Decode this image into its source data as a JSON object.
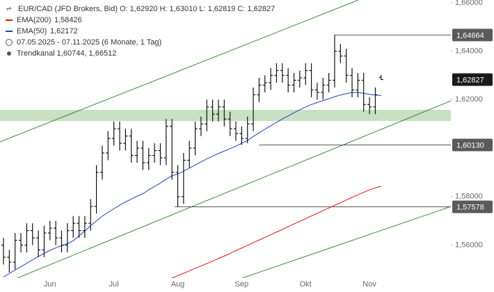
{
  "chart_data": {
    "type": "ohlc",
    "title": "EUR/CAD (JFD Brokers, Bid)",
    "ohlc_text": "O: 1,62920  H: 1,63010  L: 1,62819  C: 1,62827",
    "range_text": "07.05.2025 - 07.11.2025  (6 Monate, 1 Tag)",
    "channel_text": "Trendkanal  1,60744, 1,66512",
    "bar_color": "#111111",
    "categories": [
      null,
      null,
      null,
      null,
      null,
      null,
      null,
      null,
      "Jun",
      null,
      null,
      null,
      null,
      null,
      null,
      null,
      null,
      null,
      null,
      "Jul",
      null,
      null,
      null,
      null,
      null,
      null,
      null,
      null,
      null,
      null,
      "Aug",
      null,
      null,
      null,
      null,
      null,
      null,
      null,
      null,
      null,
      null,
      "Sep",
      null,
      null,
      null,
      null,
      null,
      null,
      null,
      null,
      null,
      null,
      "Okt",
      null,
      null,
      null,
      null,
      null,
      null,
      null,
      null,
      null,
      null,
      "Nov",
      null,
      null
    ],
    "open": [
      1.56,
      1.555,
      1.553,
      1.562,
      1.56,
      1.566,
      1.563,
      1.558,
      1.565,
      1.567,
      1.563,
      1.56,
      1.566,
      1.569,
      1.566,
      1.569,
      1.576,
      1.59,
      1.598,
      1.604,
      1.608,
      1.602,
      1.605,
      1.597,
      1.6,
      1.594,
      1.597,
      1.599,
      1.596,
      1.609,
      1.59,
      1.58,
      1.595,
      1.6,
      1.608,
      1.61,
      1.617,
      1.614,
      1.617,
      1.612,
      1.608,
      1.606,
      1.604,
      1.61,
      1.622,
      1.626,
      1.627,
      1.63,
      1.632,
      1.63,
      1.626,
      1.628,
      1.629,
      1.632,
      1.624,
      1.623,
      1.626,
      1.628,
      1.64,
      1.638,
      1.63,
      1.624,
      1.628,
      1.618,
      1.617,
      1.6292
    ],
    "high": [
      1.563,
      1.558,
      1.565,
      1.565,
      1.569,
      1.569,
      1.566,
      1.568,
      1.57,
      1.57,
      1.566,
      1.569,
      1.572,
      1.572,
      1.572,
      1.579,
      1.593,
      1.601,
      1.607,
      1.611,
      1.611,
      1.608,
      1.608,
      1.603,
      1.603,
      1.6,
      1.602,
      1.602,
      1.612,
      1.612,
      1.593,
      1.598,
      1.603,
      1.611,
      1.613,
      1.62,
      1.62,
      1.62,
      1.62,
      1.615,
      1.611,
      1.609,
      1.613,
      1.625,
      1.629,
      1.63,
      1.633,
      1.635,
      1.635,
      1.633,
      1.631,
      1.632,
      1.635,
      1.635,
      1.627,
      1.629,
      1.631,
      1.64664,
      1.643,
      1.641,
      1.633,
      1.631,
      1.631,
      1.621,
      1.625,
      1.6301
    ],
    "low": [
      1.552,
      1.5487,
      1.55,
      1.557,
      1.557,
      1.56,
      1.555,
      1.555,
      1.562,
      1.56,
      1.557,
      1.557,
      1.563,
      1.563,
      1.563,
      1.566,
      1.573,
      1.587,
      1.595,
      1.601,
      1.599,
      1.599,
      1.594,
      1.594,
      1.591,
      1.591,
      1.594,
      1.593,
      1.593,
      1.587,
      1.57578,
      1.577,
      1.592,
      1.597,
      1.605,
      1.607,
      1.611,
      1.611,
      1.609,
      1.605,
      1.603,
      1.6013,
      1.602,
      1.607,
      1.619,
      1.623,
      1.624,
      1.627,
      1.627,
      1.623,
      1.623,
      1.625,
      1.626,
      1.621,
      1.62,
      1.62,
      1.623,
      1.625,
      1.635,
      1.627,
      1.621,
      1.621,
      1.615,
      1.614,
      1.614,
      1.62819
    ],
    "close": [
      1.555,
      1.553,
      1.562,
      1.56,
      1.566,
      1.563,
      1.558,
      1.565,
      1.567,
      1.563,
      1.56,
      1.566,
      1.569,
      1.566,
      1.569,
      1.576,
      1.59,
      1.598,
      1.604,
      1.608,
      1.602,
      1.605,
      1.597,
      1.6,
      1.594,
      1.597,
      1.599,
      1.596,
      1.609,
      1.59,
      1.58,
      1.595,
      1.6,
      1.608,
      1.61,
      1.617,
      1.614,
      1.617,
      1.612,
      1.608,
      1.606,
      1.604,
      1.61,
      1.622,
      1.626,
      1.627,
      1.63,
      1.632,
      1.63,
      1.626,
      1.628,
      1.629,
      1.632,
      1.624,
      1.623,
      1.626,
      1.628,
      1.64,
      1.638,
      1.63,
      1.624,
      1.628,
      1.618,
      1.617,
      1.622,
      1.62827
    ],
    "series": [
      {
        "name": "EMA(200)",
        "legend_value": "1,58426",
        "color": "#e01010",
        "values": [
          null,
          null,
          null,
          null,
          null,
          null,
          null,
          null,
          null,
          null,
          null,
          null,
          null,
          null,
          null,
          null,
          null,
          null,
          null,
          null,
          null,
          null,
          null,
          null,
          null,
          null,
          1.5435,
          1.5444,
          1.5454,
          1.5464,
          1.5474,
          1.5484,
          1.5494,
          1.5504,
          1.5514,
          1.5524,
          1.5534,
          1.5545,
          1.5555,
          1.5566,
          1.5577,
          1.5588,
          1.5599,
          1.561,
          1.5621,
          1.5632,
          1.5643,
          1.5654,
          1.5665,
          1.5676,
          1.5687,
          1.5698,
          1.5709,
          1.572,
          1.5731,
          1.5742,
          1.5753,
          1.5764,
          1.5775,
          1.5786,
          1.5797,
          1.5808,
          1.5818,
          1.5828,
          1.5836,
          1.5843
        ]
      },
      {
        "name": "EMA(50)",
        "legend_value": "1,62172",
        "color": "#1f3fbf",
        "values": [
          1.5469,
          1.5483,
          1.5497,
          1.5511,
          1.5525,
          1.5539,
          1.5553,
          1.5566,
          1.5578,
          1.5589,
          1.5598,
          1.5606,
          1.5618,
          1.5638,
          1.5658,
          1.568,
          1.57,
          1.572,
          1.5735,
          1.575,
          1.5765,
          1.5778,
          1.579,
          1.5802,
          1.5812,
          1.5828,
          1.5842,
          1.5856,
          1.5872,
          1.5886,
          1.5893,
          1.5905,
          1.5918,
          1.593,
          1.5943,
          1.5956,
          1.5967,
          1.5978,
          1.5988,
          1.5998,
          1.6008,
          1.602,
          1.6032,
          1.6048,
          1.6063,
          1.6078,
          1.6092,
          1.6106,
          1.612,
          1.6133,
          1.6146,
          1.6158,
          1.617,
          1.618,
          1.6188,
          1.6196,
          1.6204,
          1.6212,
          1.6219,
          1.6225,
          1.6229,
          1.623,
          1.6226,
          1.6222,
          1.6219,
          1.6217
        ]
      }
    ],
    "channel_color": "#3a8a3a",
    "channel": [
      {
        "x": [
          -0.6,
          61.1
        ],
        "y": [
          1.6026,
          1.6611
        ]
      },
      {
        "x": [
          -0.6,
          77
        ],
        "y": [
          1.5435,
          1.6195
        ]
      },
      {
        "x": [
          41.1,
          77
        ],
        "y": [
          1.5464,
          1.5759
        ]
      }
    ],
    "zone": {
      "range": [
        1.6112,
        1.6158
      ],
      "color": "#c9e0c4"
    },
    "levels": [
      {
        "value": 1.64664,
        "label": "1,64664",
        "start": 57
      },
      {
        "value": 1.6013,
        "label": "1,60130",
        "start": 44
      },
      {
        "value": 1.57578,
        "label": "1,57578",
        "start": 29.5
      }
    ],
    "last_price": {
      "value": 1.62827,
      "label": "1,62827"
    },
    "ylim": [
      1.5464,
      1.6611
    ],
    "yticks": [
      {
        "value": 1.66,
        "label": "1,66000"
      },
      {
        "value": 1.64,
        "label": "1,64000"
      },
      {
        "value": 1.62,
        "label": "1,62000"
      },
      {
        "value": 1.58,
        "label": "1,58000"
      },
      {
        "value": 1.56,
        "label": "1,56000"
      }
    ]
  }
}
